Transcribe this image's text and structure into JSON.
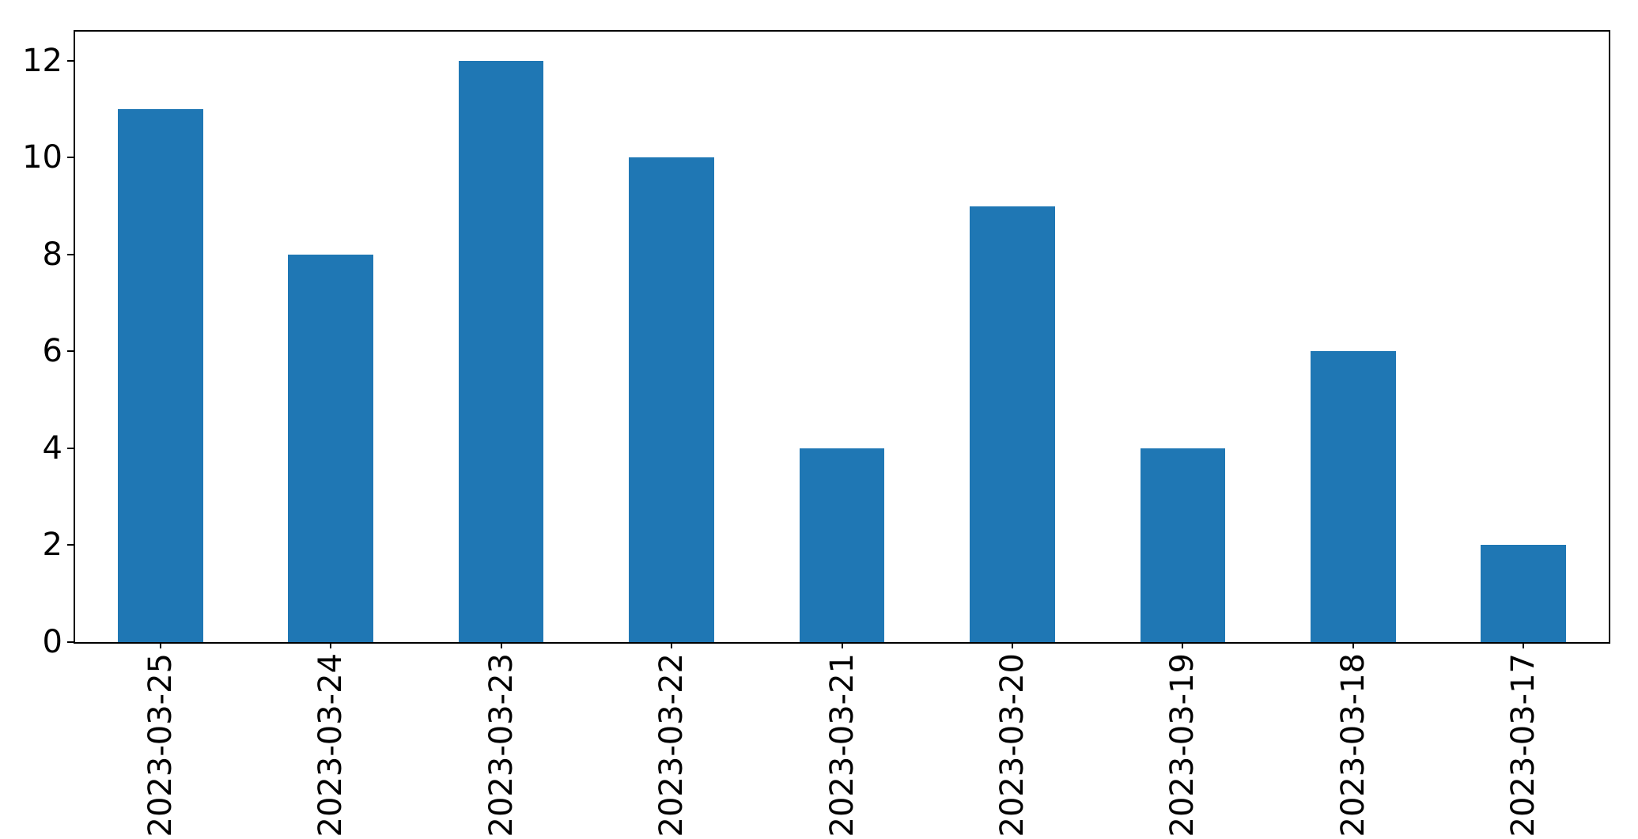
{
  "chart_data": {
    "type": "bar",
    "title": "",
    "xlabel": "",
    "ylabel": "",
    "categories": [
      "2023-03-25",
      "2023-03-24",
      "2023-03-23",
      "2023-03-22",
      "2023-03-21",
      "2023-03-20",
      "2023-03-19",
      "2023-03-18",
      "2023-03-17"
    ],
    "values": [
      11,
      8,
      12,
      10,
      4,
      9,
      4,
      6,
      2
    ],
    "ylim": [
      0,
      12.6
    ],
    "yticks": [
      0,
      2,
      4,
      6,
      8,
      10,
      12
    ],
    "x_tick_rotation_degrees": 90,
    "bar_width_fraction": 0.5,
    "grid": false,
    "legend": false,
    "colors": {
      "bar": "#1f77b4",
      "axes": "#000000",
      "text": "#000000",
      "background": "#ffffff"
    }
  }
}
